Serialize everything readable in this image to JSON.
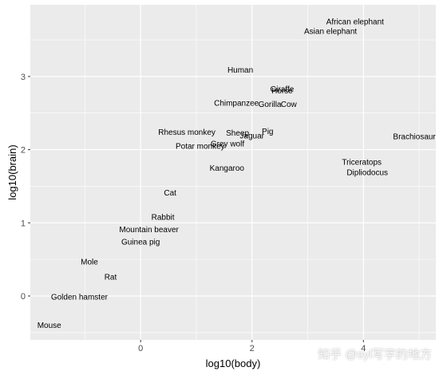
{
  "chart_data": {
    "type": "scatter",
    "title": "",
    "xlabel": "log10(body)",
    "ylabel": "log10(brain)",
    "xlim": [
      -1.98,
      5.3
    ],
    "ylim": [
      -0.6,
      3.98
    ],
    "xticks": [
      0,
      2,
      4
    ],
    "yticks": [
      0,
      1,
      2,
      3
    ],
    "grid": true,
    "points": [
      {
        "label": "African elephant",
        "x": 3.85,
        "y": 3.75
      },
      {
        "label": "Asian elephant",
        "x": 3.41,
        "y": 3.62
      },
      {
        "label": "Human",
        "x": 1.79,
        "y": 3.09
      },
      {
        "label": "Giraffe",
        "x": 2.54,
        "y": 2.83
      },
      {
        "label": "Horse",
        "x": 2.54,
        "y": 2.81
      },
      {
        "label": "Chimpanzee",
        "x": 1.72,
        "y": 2.64
      },
      {
        "label": "Gorilla",
        "x": 2.32,
        "y": 2.62
      },
      {
        "label": "Cow",
        "x": 2.66,
        "y": 2.62
      },
      {
        "label": "Brachiosaurus",
        "x": 4.99,
        "y": 2.18
      },
      {
        "label": "Rhesus monkey",
        "x": 0.83,
        "y": 2.24
      },
      {
        "label": "Sheep",
        "x": 1.74,
        "y": 2.23
      },
      {
        "label": "Pig",
        "x": 2.28,
        "y": 2.25
      },
      {
        "label": "Jaguar",
        "x": 2.0,
        "y": 2.19
      },
      {
        "label": "Grey wolf",
        "x": 1.56,
        "y": 2.08
      },
      {
        "label": "Potar monkey",
        "x": 1.07,
        "y": 2.05
      },
      {
        "label": "Triceratops",
        "x": 3.97,
        "y": 1.83
      },
      {
        "label": "Dipliodocus",
        "x": 4.07,
        "y": 1.69
      },
      {
        "label": "Kangaroo",
        "x": 1.55,
        "y": 1.75
      },
      {
        "label": "Cat",
        "x": 0.53,
        "y": 1.41
      },
      {
        "label": "Rabbit",
        "x": 0.4,
        "y": 1.08
      },
      {
        "label": "Mountain beaver",
        "x": 0.15,
        "y": 0.91
      },
      {
        "label": "Guinea pig",
        "x": 0.0,
        "y": 0.74
      },
      {
        "label": "Mole",
        "x": -0.92,
        "y": 0.47
      },
      {
        "label": "Rat",
        "x": -0.54,
        "y": 0.26
      },
      {
        "label": "Golden hamster",
        "x": -1.1,
        "y": -0.01
      },
      {
        "label": "Mouse",
        "x": -1.64,
        "y": -0.4
      }
    ]
  },
  "watermark": "知乎 @syl写字的地方"
}
